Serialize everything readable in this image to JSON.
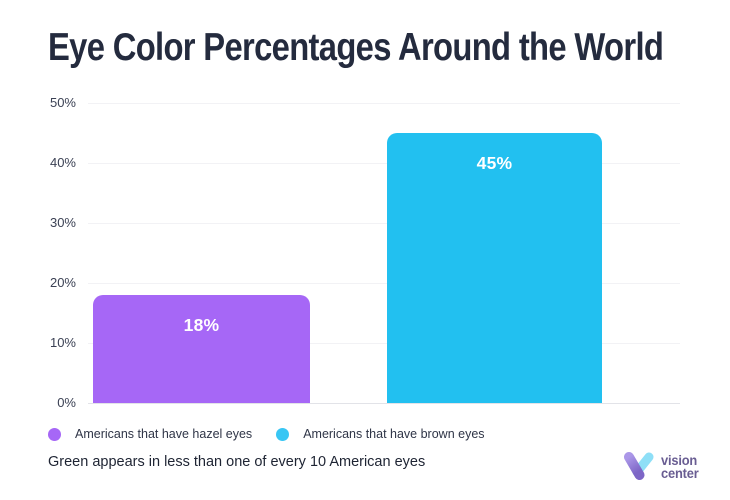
{
  "title": "Eye Color Percentages Around the World",
  "chart_data": {
    "type": "bar",
    "title": "Eye Color Percentages Around the World",
    "categories": [
      "Americans that have hazel eyes",
      "Americans that have brown eyes"
    ],
    "values": [
      18,
      45
    ],
    "bar_labels": [
      "18%",
      "45%"
    ],
    "bar_colors": [
      "#A667F6",
      "#22C0F0"
    ],
    "xlabel": "",
    "ylabel": "",
    "ylim": [
      0,
      50
    ],
    "yticks": [
      0,
      10,
      20,
      30,
      40,
      50
    ],
    "ytick_labels": [
      "0%",
      "10%",
      "20%",
      "30%",
      "40%",
      "50%"
    ],
    "grid": "horizontal",
    "legend_position": "bottom"
  },
  "legend": {
    "items": [
      {
        "label": "Americans that have hazel eyes",
        "color": "#A667F6"
      },
      {
        "label": "Americans that have brown eyes",
        "color": "#38C6F4"
      }
    ]
  },
  "note": "Green appears in less than one of every 10 American eyes",
  "logo": {
    "line1": "vision",
    "line2": "center",
    "icon": "v-check-logo-icon",
    "text_color": "#695D92",
    "icon_purple_top": "#AB97E8",
    "icon_purple_bottom": "#7D66C6",
    "icon_cyan": "#8EDFF7"
  },
  "colors": {
    "background": "#FFFFFF",
    "title_text": "#242B3E",
    "axis_label": "#3B4154",
    "gridline": "#F2F2F5",
    "baseline": "#E2E3E8",
    "bar_value_text": "#FFFFFF"
  }
}
